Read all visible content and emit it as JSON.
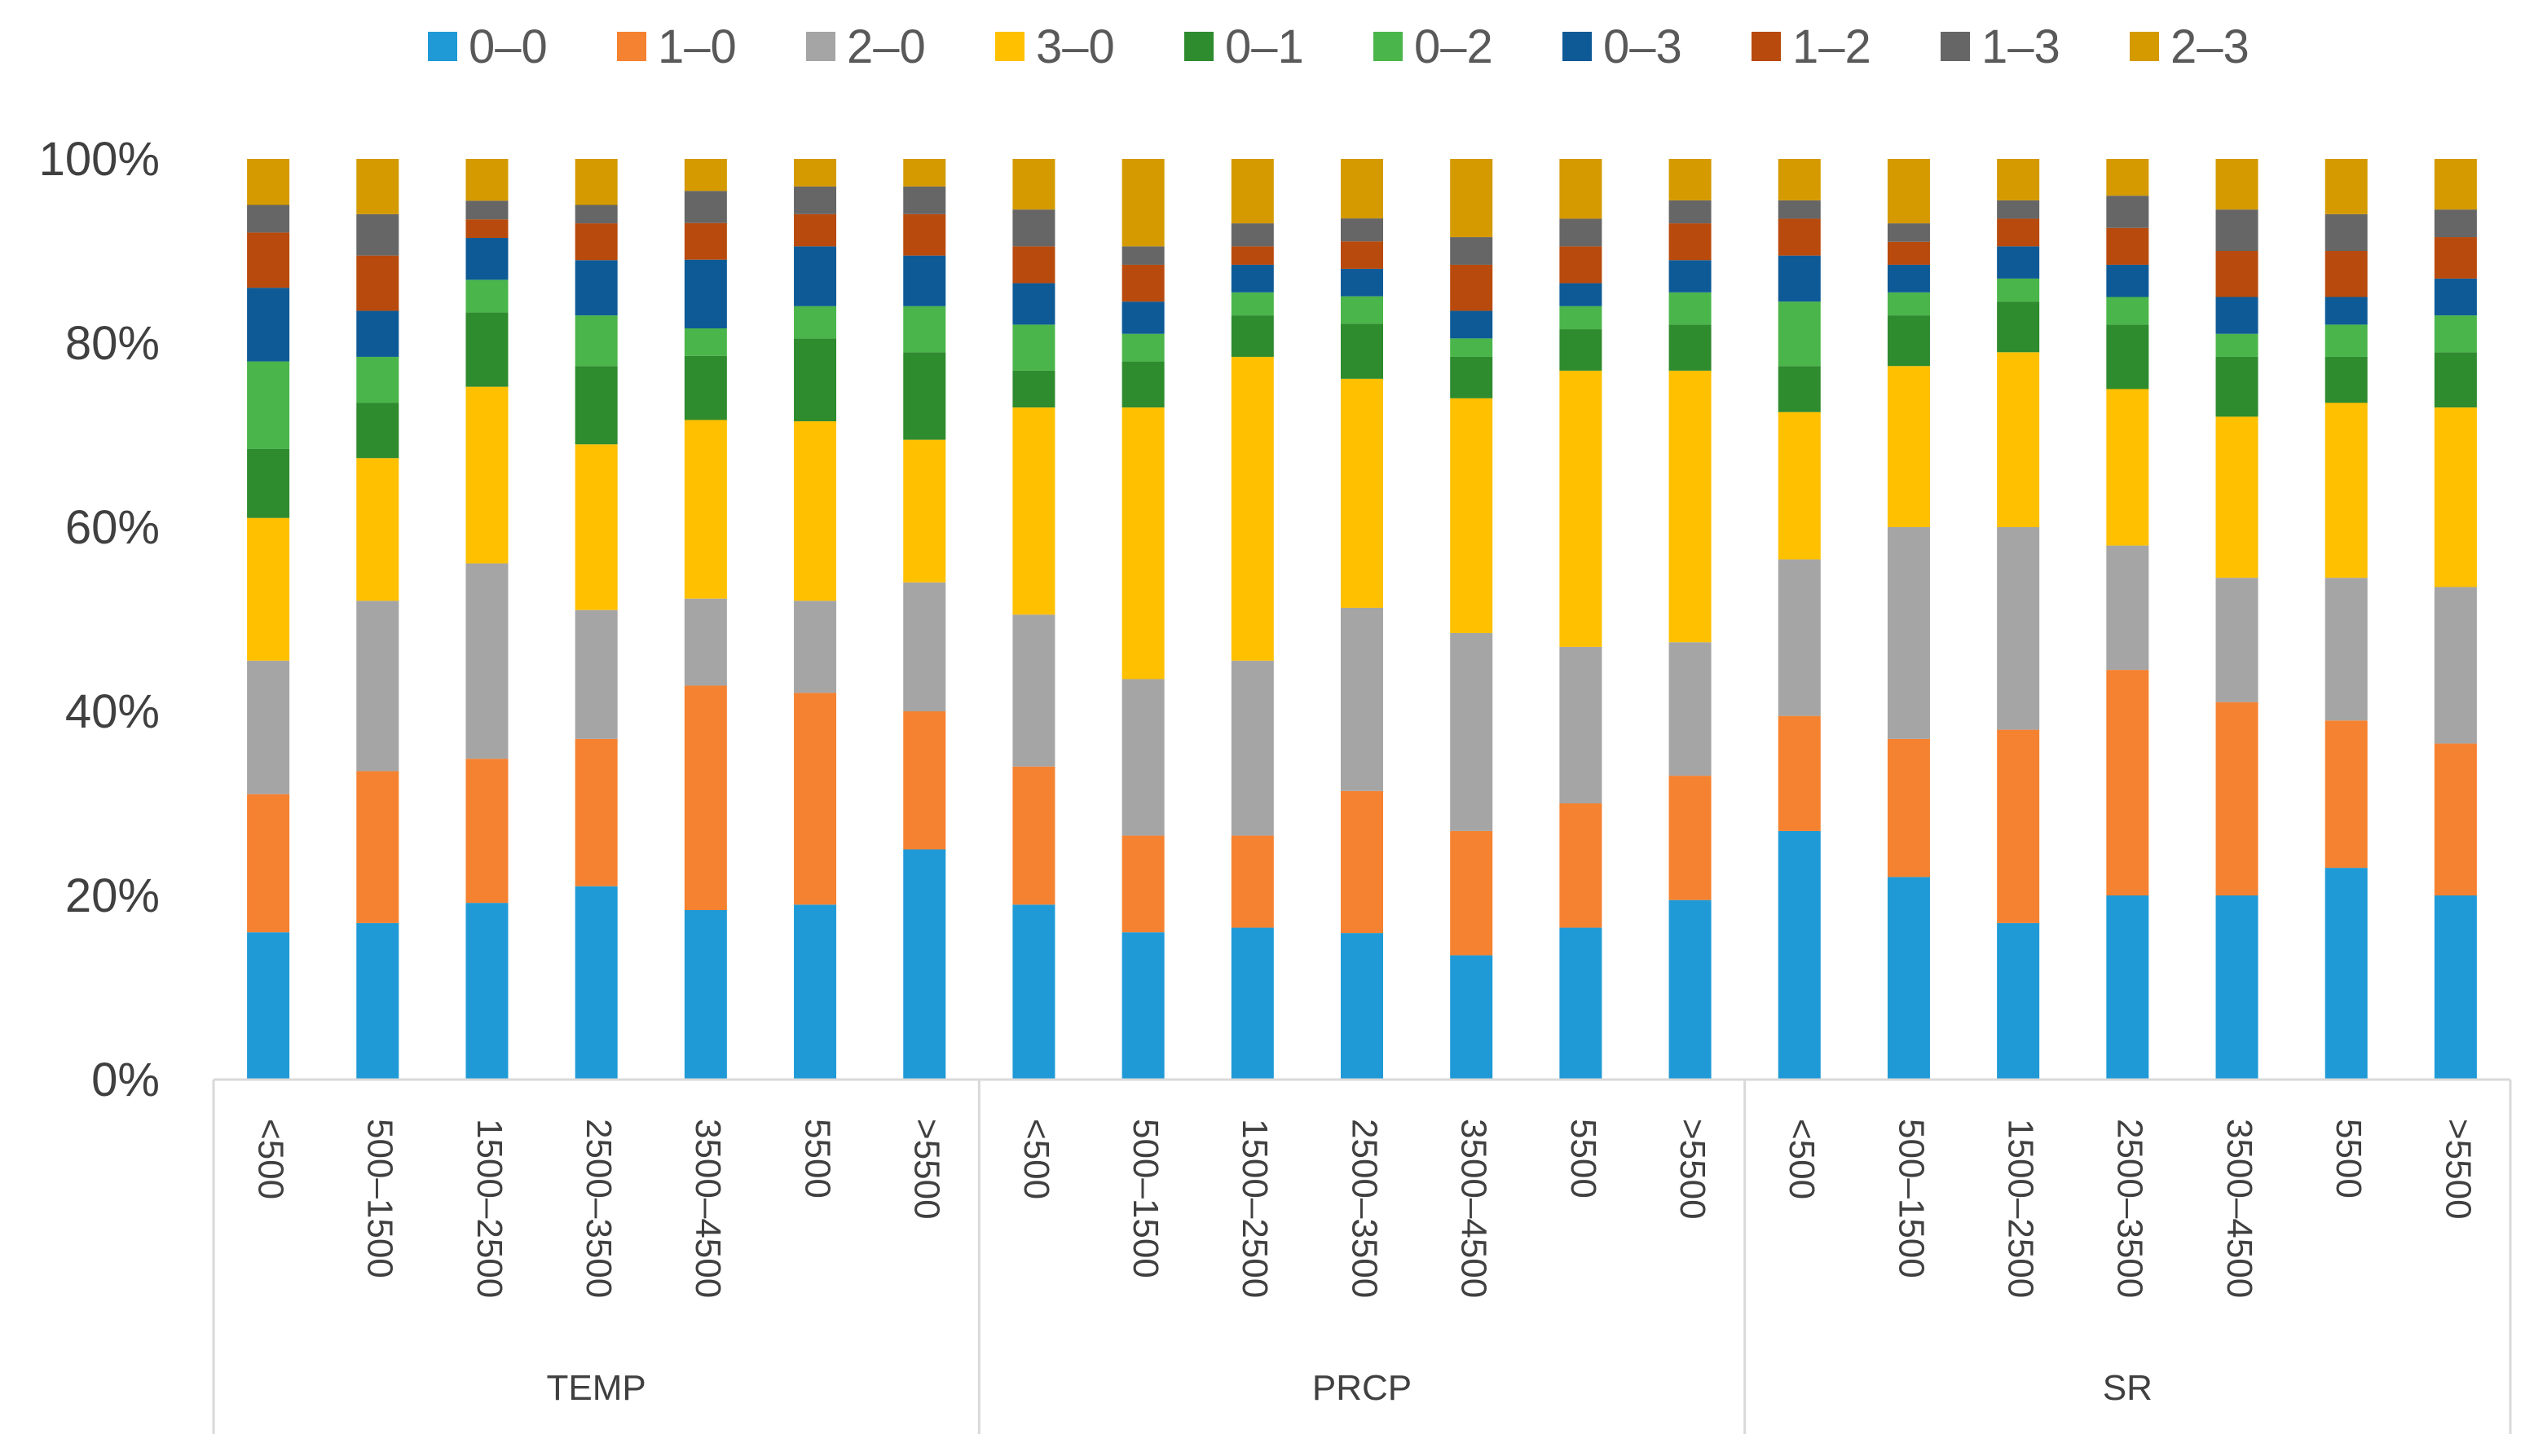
{
  "chart_data": {
    "type": "bar",
    "stacked": true,
    "percent": true,
    "title": "",
    "xlabel": "",
    "ylabel": "",
    "ylim": [
      0,
      100
    ],
    "y_ticks": [
      "0%",
      "20%",
      "40%",
      "60%",
      "80%",
      "100%"
    ],
    "legend_position": "top",
    "groups": [
      {
        "label": "TEMP",
        "categories": [
          "<500",
          "500–1500",
          "1500–2500",
          "2500–3500",
          "3500–4500",
          "5500",
          ">5500"
        ]
      },
      {
        "label": "PRCP",
        "categories": [
          "<500",
          "500–1500",
          "1500–2500",
          "2500–3500",
          "3500–4500",
          "5500",
          ">5500"
        ]
      },
      {
        "label": "SR",
        "categories": [
          "<500",
          "500–1500",
          "1500–2500",
          "2500–3500",
          "3500–4500",
          "5500",
          ">5500"
        ]
      }
    ],
    "series": [
      {
        "name": "0–0",
        "color": "#1f9ad6",
        "values": [
          16,
          17,
          19,
          21,
          18.5,
          19,
          25,
          19,
          16,
          16.5,
          16,
          13.5,
          16.5,
          19.5,
          27,
          22,
          17,
          20,
          20,
          23,
          20
        ]
      },
      {
        "name": "1–0",
        "color": "#f58231",
        "values": [
          15,
          16.5,
          15.5,
          16,
          24.5,
          23,
          15,
          15,
          10.5,
          10,
          15.5,
          13.5,
          13.5,
          13.5,
          12.5,
          15,
          21,
          24.5,
          21,
          16,
          16.5
        ]
      },
      {
        "name": "2–0",
        "color": "#a5a5a5",
        "values": [
          14.5,
          18.5,
          21,
          14,
          9.5,
          10,
          14,
          16.5,
          17,
          19,
          20,
          21.5,
          17,
          14.5,
          17,
          23,
          22,
          13.5,
          13.5,
          15.5,
          17
        ]
      },
      {
        "name": "3–0",
        "color": "#ffc000",
        "values": [
          15.5,
          15.5,
          19,
          18,
          19.5,
          19.5,
          15.5,
          22.5,
          29.5,
          33,
          25,
          25.5,
          30,
          29.5,
          16,
          17.5,
          19,
          17,
          17.5,
          19,
          19.5
        ]
      },
      {
        "name": "0–1",
        "color": "#2e8b2e",
        "values": [
          7.5,
          6,
          8,
          8.5,
          7,
          9,
          9.5,
          4,
          5,
          4.5,
          6,
          4.5,
          4.5,
          5,
          5,
          5.5,
          5.5,
          7,
          6.5,
          5,
          6
        ]
      },
      {
        "name": "0–2",
        "color": "#4ab54a",
        "values": [
          9.5,
          5,
          3.5,
          5.5,
          3,
          3.5,
          5,
          5,
          3,
          2.5,
          3,
          2,
          2.5,
          3.5,
          7,
          2.5,
          2.5,
          3,
          2.5,
          3.5,
          4
        ]
      },
      {
        "name": "0–3",
        "color": "#0e5a96",
        "values": [
          8,
          5,
          4.5,
          6,
          7.5,
          6.5,
          5.5,
          4.5,
          3.5,
          3,
          3,
          3,
          2.5,
          3.5,
          5,
          3,
          3.5,
          3.5,
          4,
          3,
          4
        ]
      },
      {
        "name": "1–2",
        "color": "#b84a0d",
        "values": [
          6,
          6,
          2,
          4,
          4,
          3.5,
          4.5,
          4,
          4,
          2,
          3,
          5,
          4,
          4,
          4,
          2.5,
          3,
          4,
          5,
          5,
          4.5
        ]
      },
      {
        "name": "1–3",
        "color": "#666666",
        "values": [
          3,
          4.5,
          2,
          2,
          3.5,
          3,
          3,
          4,
          2,
          2.5,
          2.5,
          3,
          3,
          2.5,
          2,
          2,
          2,
          3.5,
          4.5,
          4,
          3
        ]
      },
      {
        "name": "2–3",
        "color": "#d49a00",
        "values": [
          5,
          6,
          4.5,
          5,
          3.5,
          3,
          3,
          5.5,
          9.5,
          7,
          6.5,
          8.5,
          6.5,
          4.5,
          4.5,
          7,
          4.5,
          4,
          5.5,
          6,
          5.5
        ]
      }
    ]
  }
}
